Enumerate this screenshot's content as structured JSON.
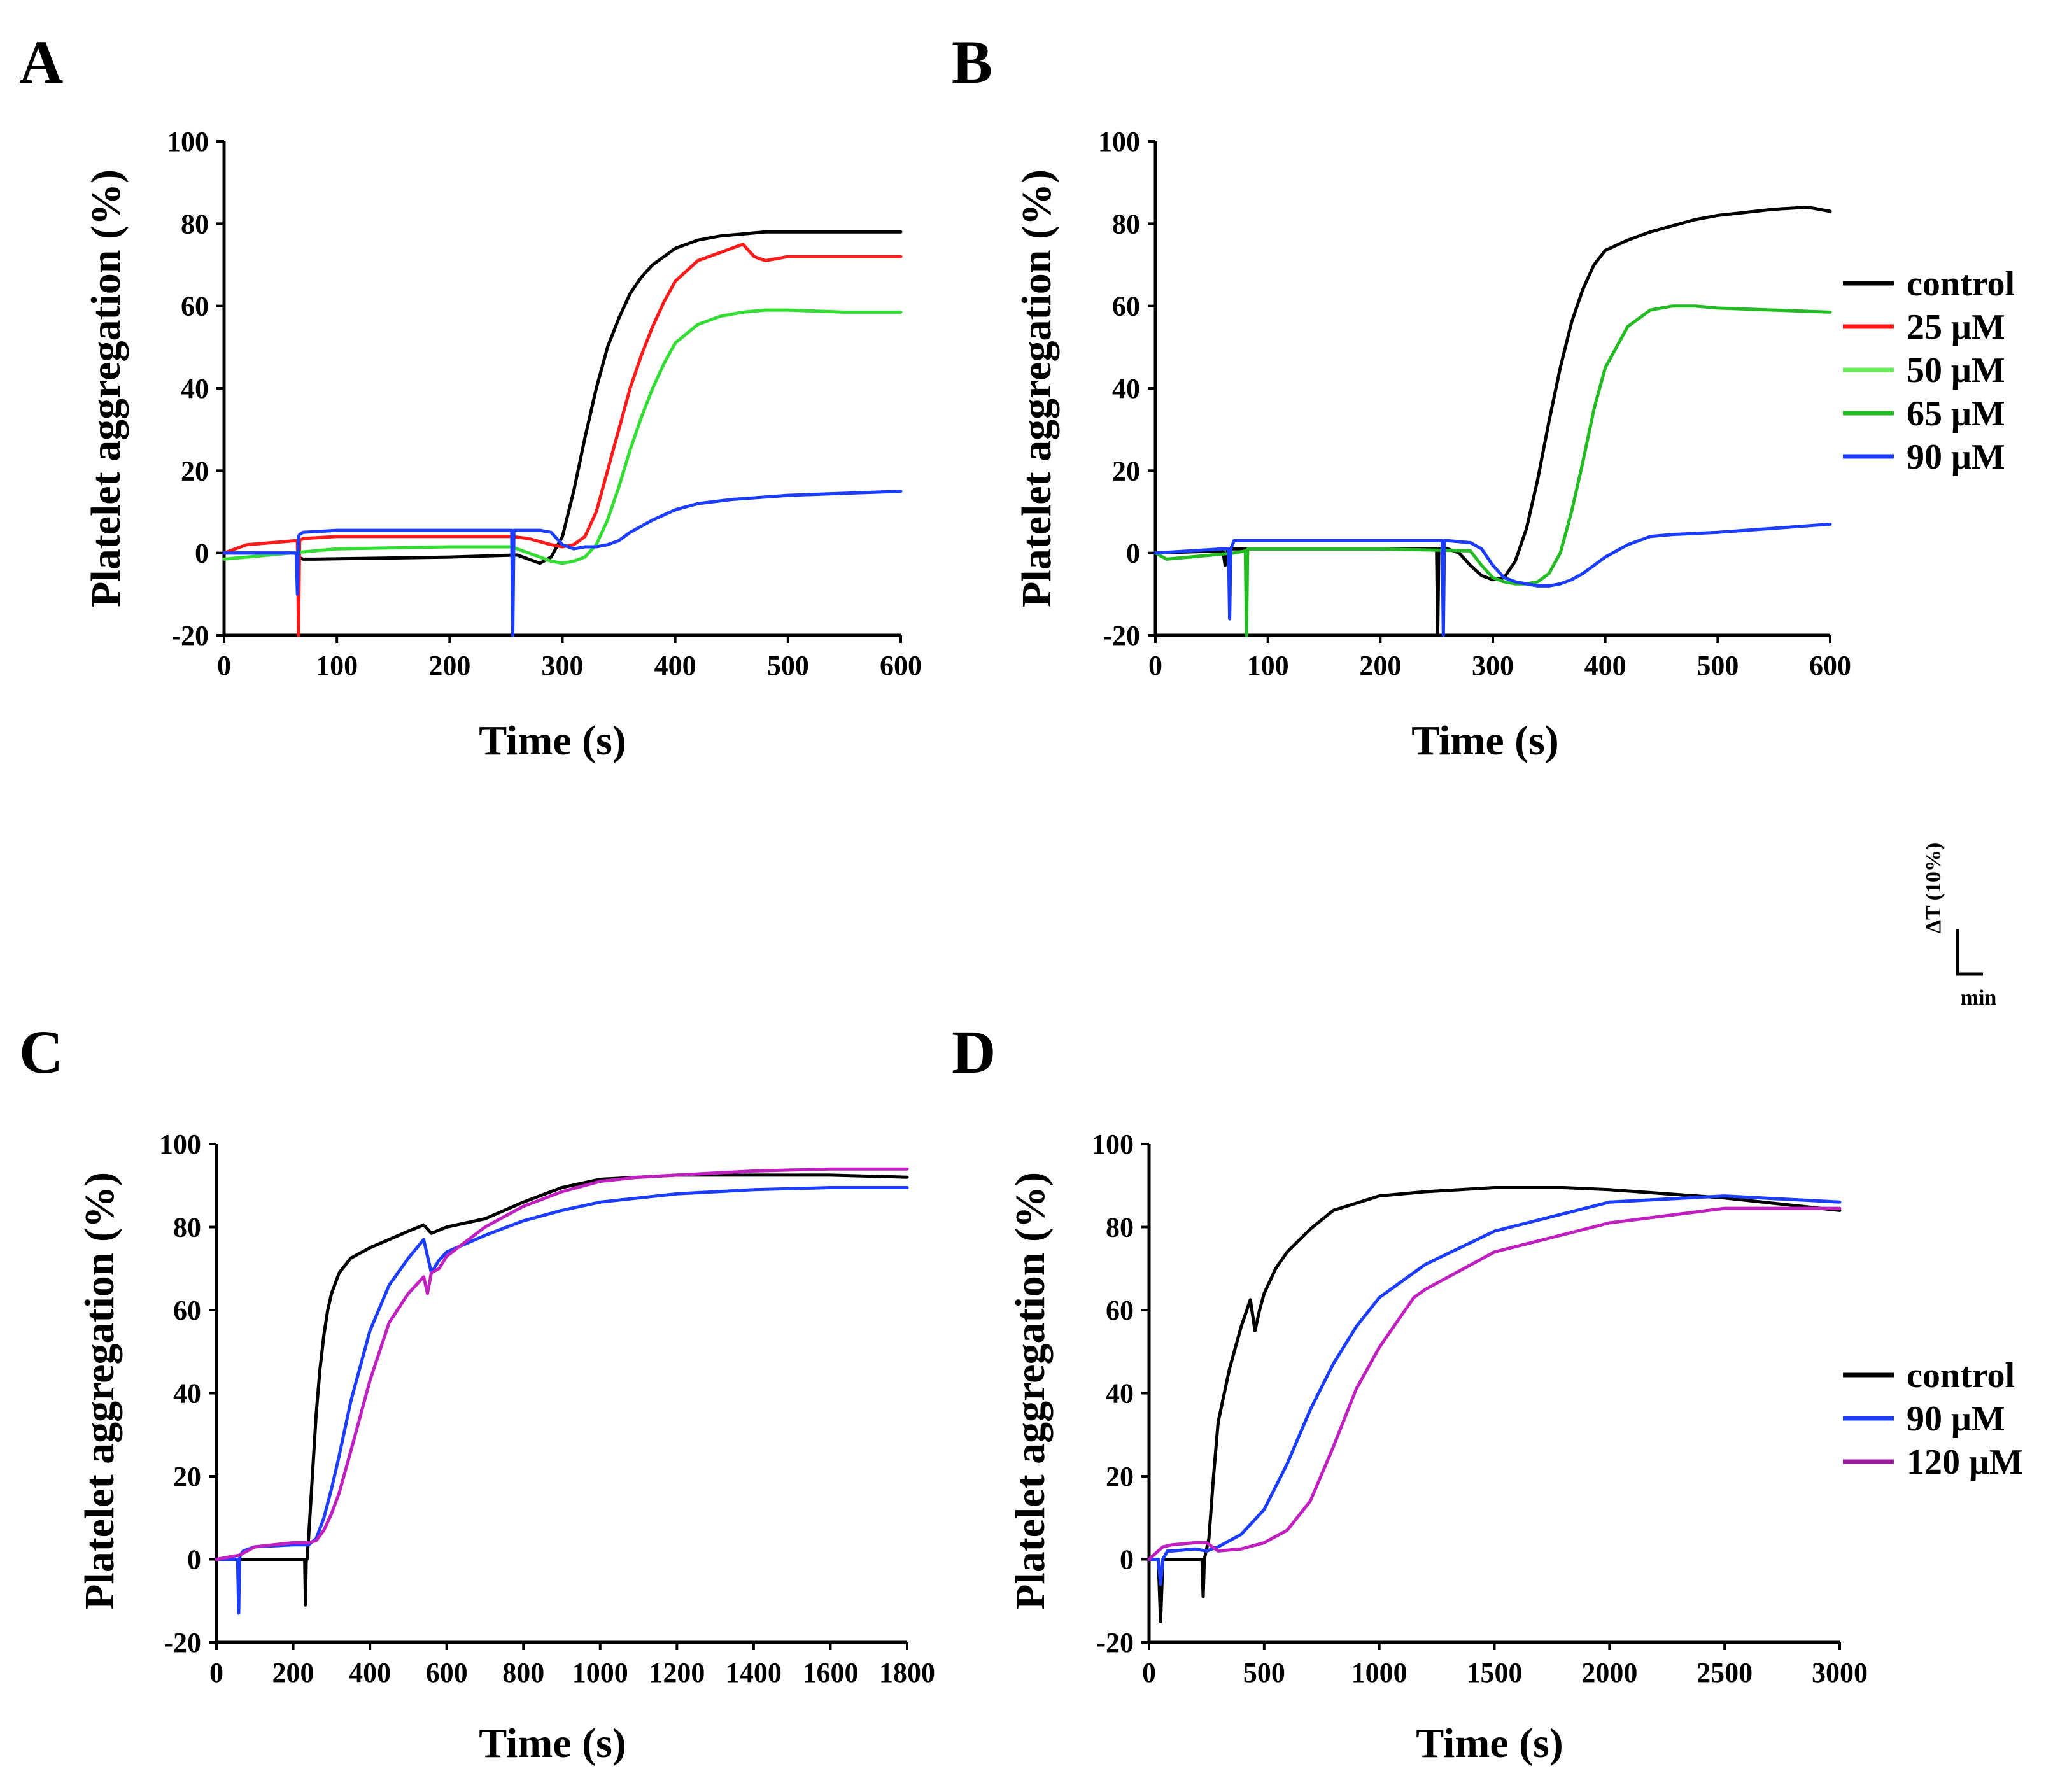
{
  "figure": {
    "scale_bar": {
      "y_label": "ΔT (10%)",
      "x_label": "min"
    }
  },
  "chart_data": [
    {
      "panel": "A",
      "type": "line",
      "title": "",
      "xlabel": "Time (s)",
      "ylabel": "Platelet aggregation (%)",
      "xlim": [
        0,
        600
      ],
      "ylim": [
        -20,
        100
      ],
      "xticks": [
        0,
        100,
        200,
        300,
        400,
        500,
        600
      ],
      "yticks": [
        -20,
        0,
        20,
        40,
        60,
        80,
        100
      ],
      "grid": false,
      "legend": null,
      "series": [
        {
          "name": "control",
          "color": "#000000",
          "x": [
            0,
            63,
            66,
            70,
            80,
            200,
            260,
            270,
            280,
            290,
            300,
            310,
            320,
            330,
            340,
            350,
            360,
            370,
            380,
            390,
            400,
            420,
            440,
            460,
            480,
            500,
            550,
            600
          ],
          "y": [
            0,
            0,
            -1,
            -1.5,
            -1.5,
            -1,
            -0.5,
            -1.5,
            -2.5,
            -1,
            4,
            15,
            28,
            40,
            50,
            57,
            63,
            67,
            70,
            72,
            74,
            76,
            77,
            77.5,
            78,
            78,
            78,
            78
          ]
        },
        {
          "name": "25 μM",
          "color": "#ff1a1a",
          "x": [
            0,
            20,
            64,
            65,
            66,
            67,
            70,
            100,
            200,
            255,
            270,
            290,
            300,
            310,
            320,
            330,
            340,
            350,
            360,
            370,
            380,
            390,
            400,
            420,
            440,
            460,
            470,
            480,
            500,
            550,
            600
          ],
          "y": [
            0,
            2,
            3,
            3,
            -20,
            3,
            3.5,
            4,
            4,
            4,
            3.5,
            2,
            1.5,
            2,
            4,
            10,
            20,
            30,
            40,
            48,
            55,
            61,
            66,
            71,
            73,
            75,
            72,
            71,
            72,
            72,
            72
          ]
        },
        {
          "name": "50 μM",
          "color": "#33dd33",
          "x": [
            0,
            60,
            100,
            200,
            255,
            270,
            290,
            300,
            310,
            320,
            330,
            340,
            350,
            360,
            370,
            380,
            390,
            400,
            420,
            440,
            460,
            480,
            500,
            550,
            600
          ],
          "y": [
            -1.5,
            0,
            1,
            1.5,
            1.5,
            0,
            -2,
            -2.5,
            -2,
            -1,
            2,
            8,
            16,
            25,
            33,
            40,
            46,
            51,
            55.5,
            57.5,
            58.5,
            59,
            59,
            58.5,
            58.5
          ]
        },
        {
          "name": "90 μM",
          "color": "#1a3dff",
          "x": [
            0,
            64,
            65,
            66,
            67,
            70,
            100,
            200,
            250,
            255,
            256,
            257,
            260,
            280,
            290,
            300,
            310,
            320,
            330,
            340,
            350,
            360,
            380,
            400,
            420,
            450,
            500,
            550,
            600
          ],
          "y": [
            0,
            0,
            -10,
            4,
            4.5,
            5,
            5.5,
            5.5,
            5.5,
            5.5,
            -20,
            5.5,
            5.5,
            5.5,
            5,
            2,
            1,
            1.5,
            1.5,
            2,
            3,
            5,
            8,
            10.5,
            12,
            13,
            14,
            14.5,
            15
          ]
        }
      ]
    },
    {
      "panel": "B",
      "type": "line",
      "title": "",
      "xlabel": "Time (s)",
      "ylabel": "Platelet aggregation (%)",
      "xlim": [
        0,
        600
      ],
      "ylim": [
        -20,
        100
      ],
      "xticks": [
        0,
        100,
        200,
        300,
        400,
        500,
        600
      ],
      "yticks": [
        -20,
        0,
        20,
        40,
        60,
        80,
        100
      ],
      "grid": false,
      "legend": "right",
      "legend_entries": [
        {
          "label": "control",
          "color": "#000000"
        },
        {
          "label": "25 μM",
          "color": "#ff1a1a"
        },
        {
          "label": "50 μM",
          "color": "#66ee55"
        },
        {
          "label": "65 μM",
          "color": "#22bb22"
        },
        {
          "label": "90 μM",
          "color": "#1a3dff"
        }
      ],
      "series": [
        {
          "name": "control",
          "color": "#000000",
          "x": [
            0,
            60,
            62,
            64,
            66,
            100,
            200,
            250,
            251,
            252,
            253,
            260,
            270,
            280,
            290,
            300,
            310,
            320,
            330,
            340,
            350,
            360,
            370,
            380,
            390,
            400,
            420,
            440,
            460,
            480,
            500,
            550,
            580,
            600
          ],
          "y": [
            0,
            0.5,
            -3,
            0.5,
            1,
            1,
            1,
            1,
            -20,
            1,
            1,
            1,
            0,
            -3,
            -5.5,
            -6.5,
            -6,
            -2,
            6,
            18,
            32,
            45,
            56,
            64,
            70,
            73.5,
            76,
            78,
            79.5,
            81,
            82,
            83.5,
            84,
            83
          ]
        },
        {
          "name": "65 μM",
          "color": "#22bb22",
          "x": [
            0,
            10,
            70,
            80,
            81,
            82,
            100,
            200,
            280,
            290,
            300,
            310,
            320,
            330,
            340,
            350,
            360,
            370,
            380,
            390,
            400,
            420,
            440,
            460,
            480,
            500,
            550,
            600
          ],
          "y": [
            0,
            -1.5,
            0,
            0.5,
            -20,
            1,
            1,
            1,
            0.5,
            -3,
            -6,
            -7,
            -7.5,
            -7.5,
            -7,
            -5,
            0,
            10,
            22,
            35,
            45,
            55,
            59,
            60,
            60,
            59.5,
            59,
            58.5
          ]
        },
        {
          "name": "90 μM",
          "color": "#1a3dff",
          "x": [
            0,
            60,
            65,
            66,
            67,
            70,
            100,
            200,
            254,
            255,
            256,
            257,
            260,
            280,
            290,
            300,
            310,
            320,
            330,
            340,
            350,
            360,
            370,
            380,
            390,
            400,
            420,
            440,
            460,
            500,
            550,
            600
          ],
          "y": [
            0,
            1,
            1,
            -16,
            1,
            3,
            3,
            3,
            3,
            3,
            -20,
            3,
            3,
            2.5,
            1,
            -3,
            -6,
            -7,
            -7.5,
            -8,
            -8,
            -7.5,
            -6.5,
            -5,
            -3,
            -1,
            2,
            4,
            4.5,
            5,
            6,
            7
          ]
        }
      ]
    },
    {
      "panel": "C",
      "type": "line",
      "title": "",
      "xlabel": "Time (s)",
      "ylabel": "Platelet aggregation (%)",
      "xlim": [
        0,
        1800
      ],
      "ylim": [
        -20,
        100
      ],
      "xticks": [
        0,
        200,
        400,
        600,
        800,
        1000,
        1200,
        1400,
        1600,
        1800
      ],
      "yticks": [
        -20,
        0,
        20,
        40,
        60,
        80,
        100
      ],
      "grid": false,
      "legend": null,
      "series": [
        {
          "name": "control",
          "color": "#000000",
          "x": [
            0,
            230,
            232,
            234,
            236,
            240,
            250,
            260,
            270,
            280,
            290,
            300,
            320,
            350,
            400,
            450,
            500,
            540,
            560,
            600,
            700,
            800,
            900,
            1000,
            1100,
            1200,
            1400,
            1600,
            1800
          ],
          "y": [
            0,
            0,
            -11,
            0,
            0,
            5,
            20,
            35,
            46,
            54,
            60,
            64,
            69,
            72.5,
            75,
            77,
            79,
            80.5,
            78.5,
            80,
            82,
            86,
            89.5,
            91.5,
            92,
            92.5,
            92.5,
            92.5,
            92
          ]
        },
        {
          "name": "90 μM",
          "color": "#1a3dff",
          "x": [
            0,
            55,
            58,
            60,
            62,
            70,
            100,
            200,
            240,
            260,
            280,
            300,
            320,
            350,
            400,
            450,
            500,
            540,
            550,
            560,
            580,
            600,
            700,
            800,
            900,
            1000,
            1100,
            1200,
            1400,
            1600,
            1800
          ],
          "y": [
            0,
            0,
            -13,
            0,
            1,
            2,
            3,
            3.5,
            3.5,
            5,
            10,
            17,
            25,
            38,
            55,
            66,
            72.5,
            77,
            73,
            69,
            72,
            74,
            78,
            81.5,
            84,
            86,
            87,
            88,
            89,
            89.5,
            89.5
          ]
        },
        {
          "name": "120 μM",
          "color": "#c020c0",
          "x": [
            0,
            60,
            100,
            200,
            240,
            260,
            280,
            300,
            320,
            350,
            400,
            450,
            500,
            540,
            550,
            560,
            580,
            600,
            700,
            800,
            900,
            1000,
            1100,
            1200,
            1400,
            1600,
            1800
          ],
          "y": [
            0,
            1,
            3,
            4,
            4,
            4.5,
            7,
            11,
            16,
            26,
            43,
            57,
            64,
            68,
            64,
            69,
            70,
            73,
            80,
            85,
            88.5,
            91,
            92,
            92.5,
            93.5,
            94,
            94
          ]
        }
      ]
    },
    {
      "panel": "D",
      "type": "line",
      "title": "",
      "xlabel": "Time (s)",
      "ylabel": "Platelet aggregation (%)",
      "xlim": [
        0,
        3000
      ],
      "ylim": [
        -20,
        100
      ],
      "xticks": [
        0,
        500,
        1000,
        1500,
        2000,
        2500,
        3000
      ],
      "yticks": [
        -20,
        0,
        20,
        40,
        60,
        80,
        100
      ],
      "grid": false,
      "legend": "right",
      "legend_entries": [
        {
          "label": "control",
          "color": "#000000"
        },
        {
          "label": "90 μM",
          "color": "#1a3dff"
        },
        {
          "label": "120 μM",
          "color": "#9a1fa0"
        }
      ],
      "series": [
        {
          "name": "control",
          "color": "#000000",
          "x": [
            0,
            40,
            50,
            60,
            100,
            200,
            230,
            235,
            240,
            260,
            280,
            300,
            350,
            400,
            440,
            460,
            480,
            500,
            550,
            600,
            700,
            800,
            1000,
            1200,
            1500,
            1800,
            2000,
            2500,
            3000
          ],
          "y": [
            0,
            0,
            -15,
            0,
            0,
            0,
            0,
            -9,
            0,
            5,
            20,
            33,
            46,
            56,
            62.5,
            55,
            60,
            64,
            70,
            74,
            79.5,
            84,
            87.5,
            88.5,
            89.5,
            89.5,
            89,
            87,
            84
          ]
        },
        {
          "name": "90 μM",
          "color": "#1a3dff",
          "x": [
            0,
            40,
            50,
            60,
            80,
            100,
            200,
            250,
            300,
            400,
            500,
            600,
            700,
            800,
            900,
            1000,
            1200,
            1500,
            2000,
            2500,
            3000
          ],
          "y": [
            0,
            0,
            -6,
            0,
            2,
            2,
            2.5,
            2,
            3,
            6,
            12,
            23,
            36,
            47,
            56,
            63,
            71,
            79,
            86,
            87.5,
            86
          ]
        },
        {
          "name": "120 μM",
          "color": "#c020c0",
          "x": [
            0,
            60,
            100,
            200,
            250,
            300,
            400,
            500,
            600,
            700,
            800,
            900,
            1000,
            1100,
            1150,
            1200,
            1500,
            2000,
            2500,
            3000
          ],
          "y": [
            0,
            3,
            3.5,
            4,
            4,
            2,
            2.5,
            4,
            7,
            14,
            27,
            41,
            51,
            59,
            63,
            65,
            74,
            81,
            84.5,
            84.5
          ]
        }
      ]
    }
  ]
}
